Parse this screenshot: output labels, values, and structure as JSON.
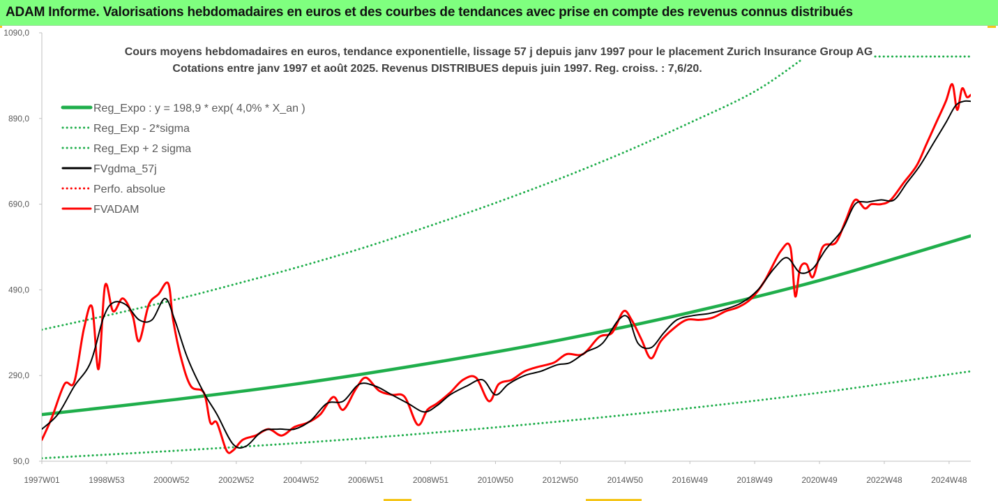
{
  "banner": {
    "title": "ADAM Informe. Valorisations hebdomadaires en euros et des courbes de tendances avec prise en compte des revenus connus distribués"
  },
  "colors": {
    "banner_bg": "#7fff7f",
    "reg_expo": "#1fae4b",
    "fvgdma": "#000000",
    "fvadam": "#ff0000",
    "perfo": "#ff0000"
  },
  "chart_data": {
    "type": "line",
    "title": "Cours moyens hebdomadaires en euros, tendance exponentielle, lissage 57 j depuis janv 1997  pour le placement Zurich Insurance Group AG",
    "subtitle": "Cotations entre janv 1997 et août 2025. Revenus DISTRIBUES depuis juin 1997. Reg. croiss. : 7,6/20.",
    "xlabel": "",
    "ylabel": "",
    "ylim": [
      90,
      1090
    ],
    "xlim": [
      1997.0,
      2025.67
    ],
    "yticks": [
      "90,0",
      "290,0",
      "490,0",
      "690,0",
      "890,0",
      "1090,0"
    ],
    "xticks": [
      {
        "label": "1997W01",
        "x": 1997.0
      },
      {
        "label": "1998W53",
        "x": 1999.0
      },
      {
        "label": "2000W52",
        "x": 2001.0
      },
      {
        "label": "2002W52",
        "x": 2003.0
      },
      {
        "label": "2004W52",
        "x": 2005.0
      },
      {
        "label": "2006W51",
        "x": 2007.0
      },
      {
        "label": "2008W51",
        "x": 2009.0
      },
      {
        "label": "2010W50",
        "x": 2011.0
      },
      {
        "label": "2012W50",
        "x": 2013.0
      },
      {
        "label": "2014W50",
        "x": 2015.0
      },
      {
        "label": "2016W49",
        "x": 2017.0
      },
      {
        "label": "2018W49",
        "x": 2019.0
      },
      {
        "label": "2020W49",
        "x": 2021.0
      },
      {
        "label": "2022W48",
        "x": 2023.0
      },
      {
        "label": "2024W48",
        "x": 2025.0
      }
    ],
    "grid": false,
    "legend_position": "top-left",
    "legend": [
      {
        "label": "Reg_Expo : y = 198,9 * exp( 4,0% *  X_an )",
        "color": "#1fae4b",
        "style": "solid-thick"
      },
      {
        "label": "Reg_Exp - 2*sigma",
        "color": "#1fae4b",
        "style": "dotted"
      },
      {
        "label": "Reg_Exp + 2 sigma",
        "color": "#1fae4b",
        "style": "dotted"
      },
      {
        "label": "FVgdma_57j",
        "color": "#000000",
        "style": "solid"
      },
      {
        "label": "Perfo. absolue",
        "color": "#ff0000",
        "style": "dotted"
      },
      {
        "label": "FVADAM",
        "color": "#ff0000",
        "style": "solid"
      }
    ],
    "series": [
      {
        "name": "Reg_Expo : y = 198,9 * exp( 4,0% *  X_an )",
        "x": [
          1997.0,
          2001.0,
          2005.0,
          2009.0,
          2013.0,
          2017.0,
          2021.0,
          2025.67
        ],
        "values": [
          198.9,
          233,
          272,
          319,
          373,
          437,
          512,
          616
        ]
      },
      {
        "name": "Reg_Exp - 2*sigma",
        "x": [
          1997.0,
          2001.0,
          2005.0,
          2009.0,
          2013.0,
          2017.0,
          2021.0,
          2025.67
        ],
        "values": [
          97,
          114,
          133,
          156,
          183,
          214,
          250,
          300
        ]
      },
      {
        "name": "Reg_Exp + 2 sigma",
        "x": [
          1997.0,
          1999.0,
          2001.0,
          2003.0,
          2005.0,
          2007.0,
          2009.0,
          2011.0,
          2013.0,
          2015.0,
          2017.0,
          2019.0,
          2020.5
        ],
        "values": [
          397,
          430,
          465,
          504,
          545,
          590,
          640,
          693,
          750,
          812,
          880,
          953,
          1030
        ]
      },
      {
        "name": "FVgdma_57j",
        "x": [
          1997.0,
          1997.5,
          1998.0,
          1998.5,
          1998.9,
          1999.2,
          1999.6,
          2000.0,
          2000.4,
          2000.8,
          2001.1,
          2001.5,
          2002.0,
          2002.4,
          2002.9,
          2003.3,
          2003.8,
          2004.3,
          2004.8,
          2005.3,
          2005.8,
          2006.3,
          2006.8,
          2007.3,
          2007.8,
          2008.3,
          2008.8,
          2009.2,
          2009.6,
          2010.1,
          2010.6,
          2011.0,
          2011.4,
          2011.9,
          2012.4,
          2012.9,
          2013.3,
          2013.8,
          2014.3,
          2014.8,
          2015.1,
          2015.4,
          2015.8,
          2016.2,
          2016.6,
          2017.1,
          2017.6,
          2018.1,
          2018.6,
          2019.1,
          2019.6,
          2020.0,
          2020.4,
          2020.8,
          2021.2,
          2021.7,
          2022.1,
          2022.5,
          2022.9,
          2023.3,
          2023.7,
          2024.1,
          2024.5,
          2024.9,
          2025.2,
          2025.45,
          2025.67
        ],
        "values": [
          165,
          200,
          265,
          320,
          425,
          460,
          455,
          420,
          420,
          470,
          420,
          330,
          250,
          200,
          130,
          125,
          160,
          165,
          165,
          185,
          225,
          230,
          270,
          265,
          245,
          225,
          205,
          220,
          245,
          265,
          280,
          245,
          270,
          290,
          300,
          315,
          320,
          345,
          365,
          420,
          425,
          365,
          355,
          390,
          420,
          430,
          435,
          445,
          460,
          490,
          540,
          565,
          530,
          540,
          585,
          630,
          690,
          695,
          700,
          700,
          740,
          780,
          830,
          880,
          920,
          930,
          930
        ]
      },
      {
        "name": "FVADAM",
        "x": [
          1997.0,
          1997.3,
          1997.7,
          1998.0,
          1998.3,
          1998.55,
          1998.75,
          1998.95,
          1999.2,
          1999.5,
          1999.8,
          2000.0,
          2000.3,
          2000.6,
          2000.9,
          2001.05,
          2001.3,
          2001.6,
          2002.0,
          2002.2,
          2002.4,
          2002.7,
          2002.9,
          2003.2,
          2003.6,
          2004.0,
          2004.4,
          2004.8,
          2005.2,
          2005.6,
          2006.0,
          2006.3,
          2006.7,
          2007.0,
          2007.4,
          2007.8,
          2008.2,
          2008.6,
          2008.9,
          2009.2,
          2009.6,
          2010.0,
          2010.4,
          2010.8,
          2011.1,
          2011.5,
          2011.9,
          2012.3,
          2012.8,
          2013.2,
          2013.7,
          2014.2,
          2014.6,
          2014.95,
          2015.2,
          2015.5,
          2015.8,
          2016.1,
          2016.5,
          2016.9,
          2017.3,
          2017.7,
          2018.1,
          2018.5,
          2018.9,
          2019.3,
          2019.8,
          2020.1,
          2020.25,
          2020.4,
          2020.6,
          2020.8,
          2021.1,
          2021.5,
          2021.8,
          2022.1,
          2022.4,
          2022.6,
          2022.9,
          2023.2,
          2023.6,
          2024.0,
          2024.3,
          2024.6,
          2024.9,
          2025.1,
          2025.25,
          2025.4,
          2025.55,
          2025.67
        ],
        "values": [
          140,
          190,
          270,
          275,
          400,
          450,
          305,
          500,
          440,
          470,
          430,
          370,
          455,
          480,
          505,
          420,
          330,
          265,
          250,
          180,
          180,
          115,
          115,
          140,
          150,
          165,
          150,
          170,
          180,
          200,
          240,
          210,
          260,
          285,
          255,
          245,
          240,
          175,
          210,
          225,
          250,
          280,
          285,
          230,
          270,
          280,
          300,
          310,
          320,
          340,
          340,
          380,
          390,
          440,
          420,
          375,
          330,
          370,
          400,
          420,
          420,
          425,
          440,
          450,
          470,
          510,
          580,
          590,
          475,
          540,
          550,
          520,
          590,
          600,
          650,
          700,
          680,
          690,
          690,
          700,
          740,
          780,
          830,
          880,
          930,
          970,
          910,
          960,
          940,
          945
        ]
      }
    ]
  }
}
